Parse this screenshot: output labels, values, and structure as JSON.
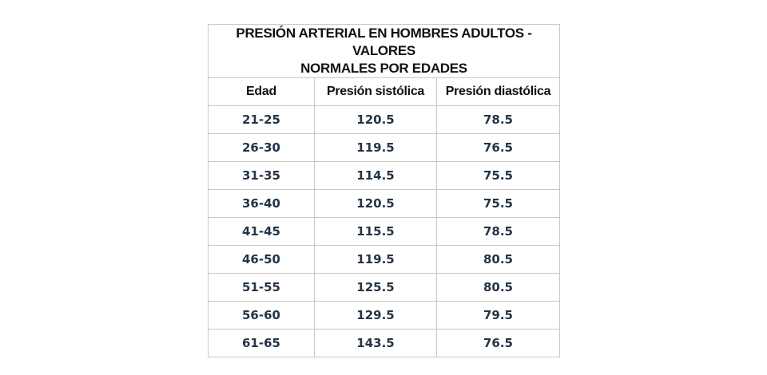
{
  "table": {
    "title_line1": "PRESIÓN ARTERIAL EN HOMBRES ADULTOS - VALORES",
    "title_line2": "NORMALES POR EDADES",
    "headers": [
      "Edad",
      "Presión sistólica",
      "Presión diastólica"
    ],
    "rows": [
      [
        "21-25",
        "120.5",
        "78.5"
      ],
      [
        "26-30",
        "119.5",
        "76.5"
      ],
      [
        "31-35",
        "114.5",
        "75.5"
      ],
      [
        "36-40",
        "120.5",
        "75.5"
      ],
      [
        "41-45",
        "115.5",
        "78.5"
      ],
      [
        "46-50",
        "119.5",
        "80.5"
      ],
      [
        "51-55",
        "125.5",
        "80.5"
      ],
      [
        "56-60",
        "129.5",
        "79.5"
      ],
      [
        "61-65",
        "143.5",
        "76.5"
      ]
    ]
  }
}
